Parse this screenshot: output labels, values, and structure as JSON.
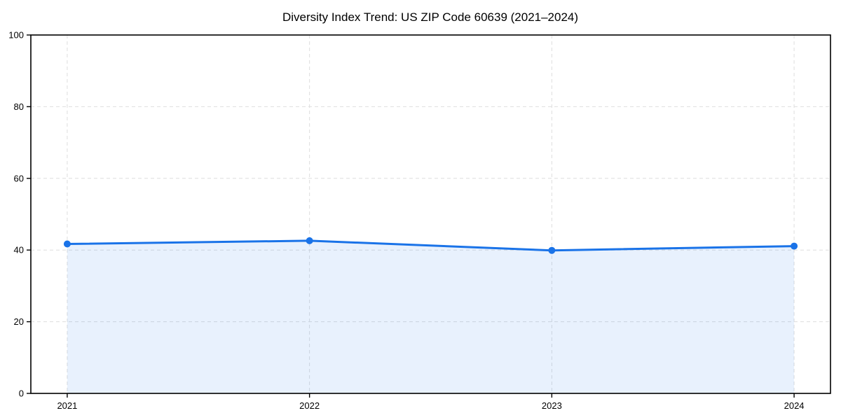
{
  "chart_data": {
    "type": "area",
    "title": "Diversity Index Trend: US ZIP Code 60639 (2021–2024)",
    "categories": [
      "2021",
      "2022",
      "2023",
      "2024"
    ],
    "values": [
      41.7,
      42.6,
      39.9,
      41.1
    ],
    "xlabel": "",
    "ylabel": "",
    "ylim": [
      0,
      100
    ],
    "yticks": [
      0,
      20,
      40,
      60,
      80,
      100
    ],
    "grid": true,
    "grid_style": "dashed",
    "legend": "none",
    "marker": "circle",
    "colors": {
      "line": "#1a73e8",
      "marker": "#1a73e8",
      "area_fill": "rgba(26,115,232,0.10)",
      "grid": "#dedede",
      "spine": "#000000",
      "background": "#ffffff",
      "text": "#000000"
    }
  }
}
